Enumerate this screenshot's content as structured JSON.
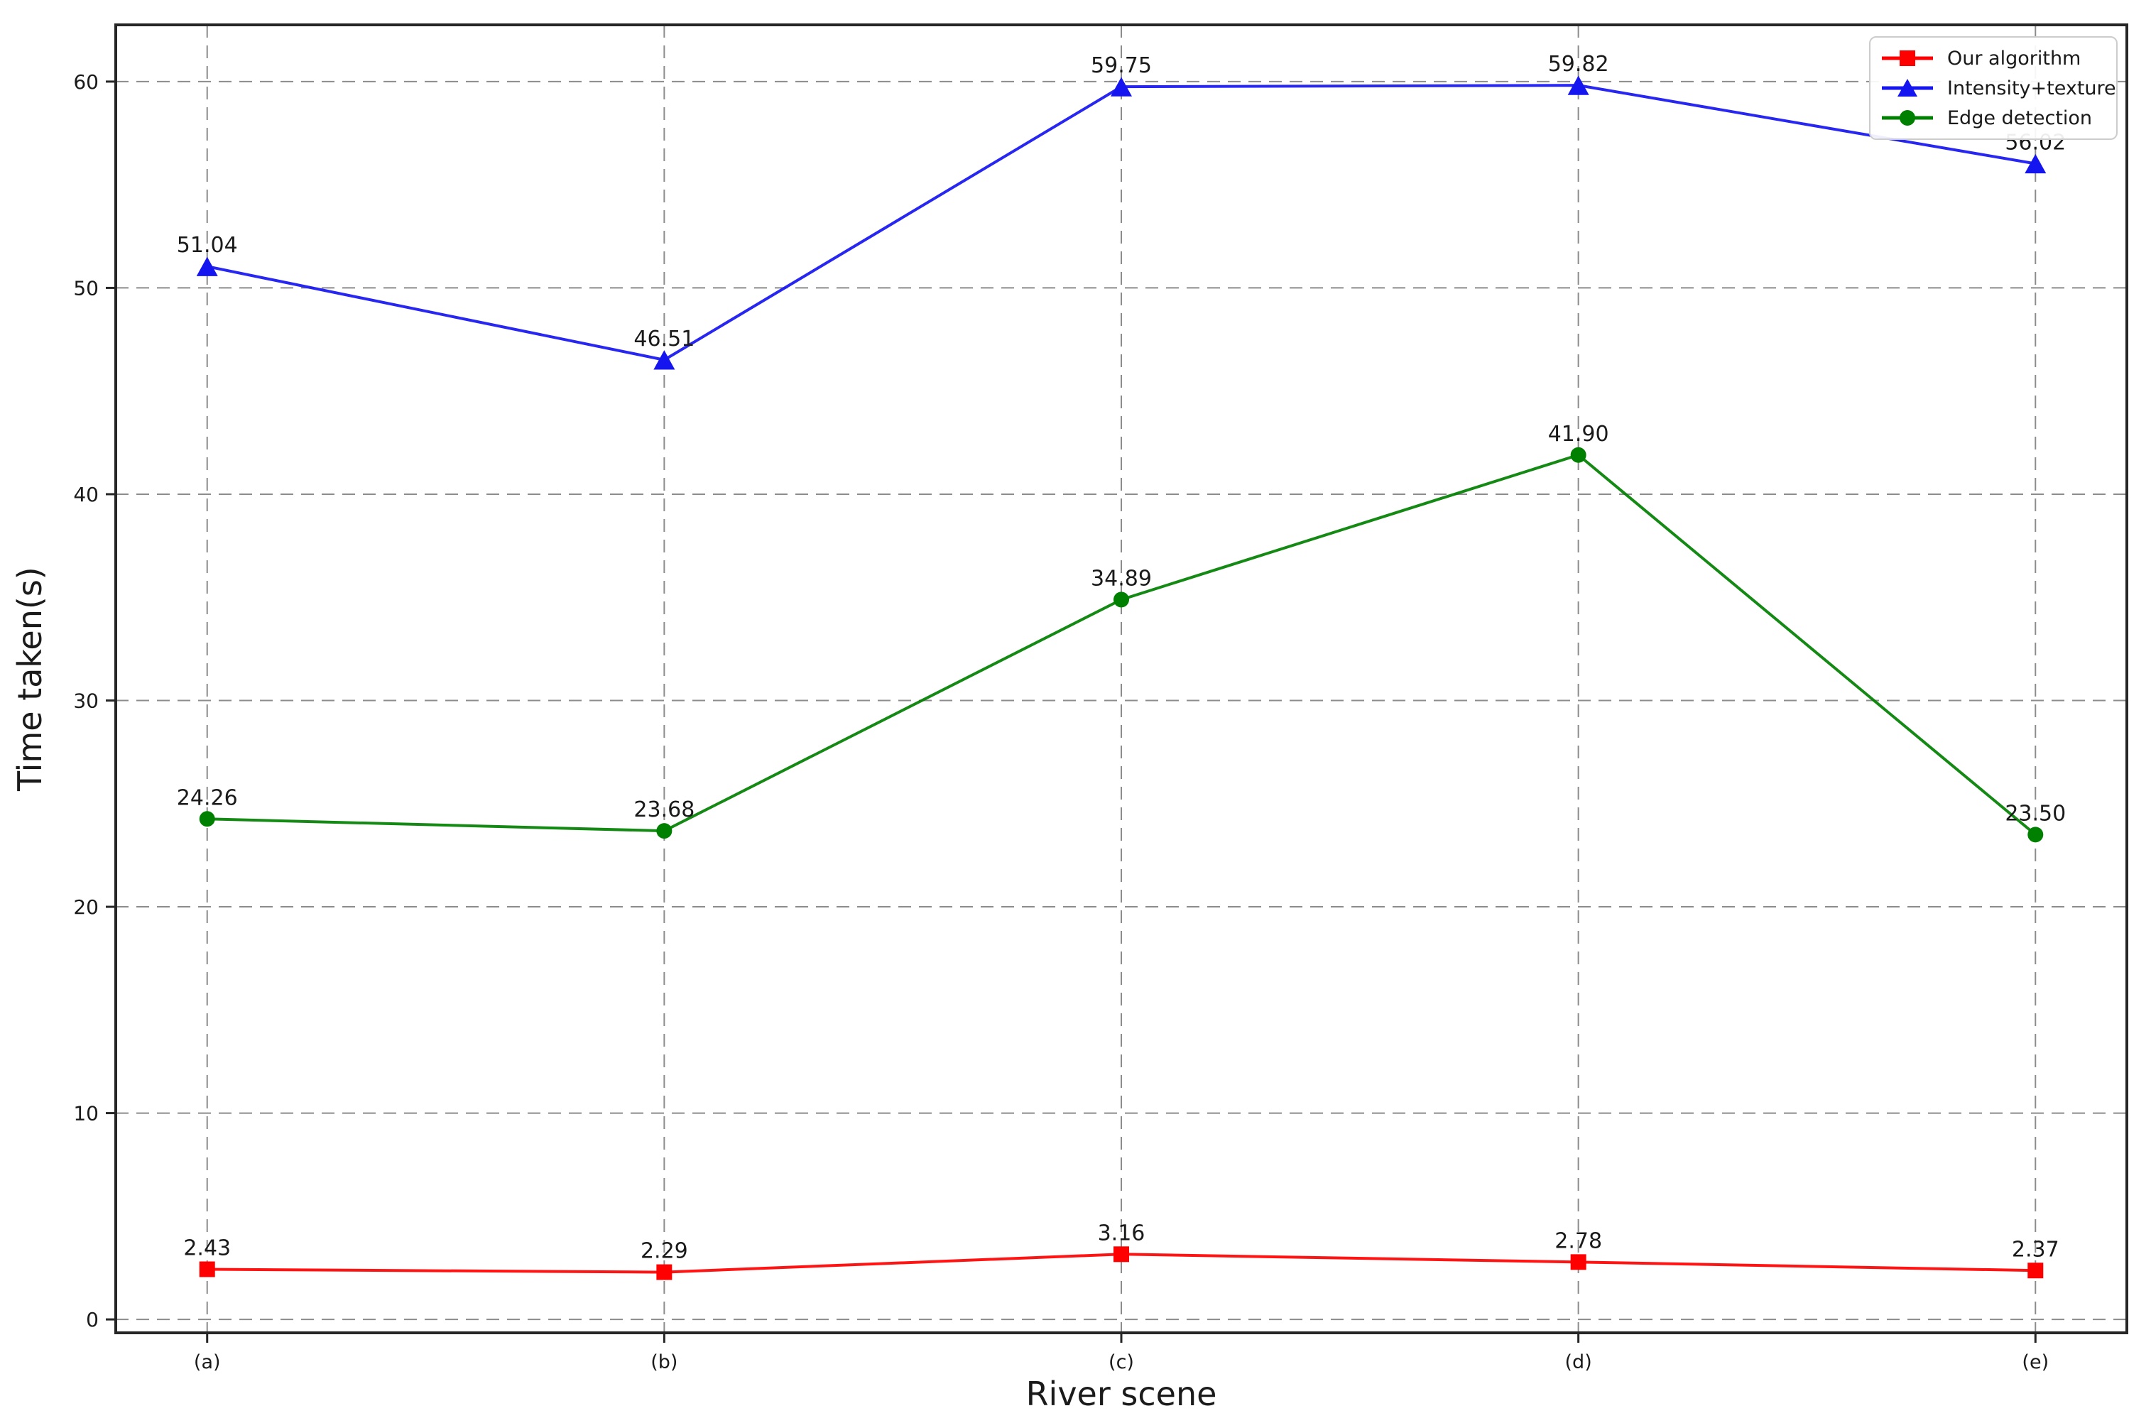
{
  "chart_data": {
    "type": "line",
    "title": "",
    "xlabel": "River scene",
    "ylabel": "Time taken(s)",
    "categories": [
      "(a)",
      "(b)",
      "(c)",
      "(d)",
      "(e)"
    ],
    "y_ticks": [
      0,
      10,
      20,
      30,
      40,
      50,
      60
    ],
    "ylim": [
      -0.65,
      62.75
    ],
    "grid": "dashed-both-axes",
    "legend_position": "upper-right",
    "value_labels_decimals": 2,
    "series": [
      {
        "name": "Our algorithm",
        "color": "#ff0000",
        "marker": "square",
        "values": [
          2.43,
          2.29,
          3.16,
          2.78,
          2.37
        ]
      },
      {
        "name": "Intensity+texture",
        "color": "#1515f0",
        "marker": "triangle-up",
        "values": [
          51.04,
          46.51,
          59.75,
          59.82,
          56.02
        ]
      },
      {
        "name": "Edge detection",
        "color": "#008000",
        "marker": "circle",
        "values": [
          24.26,
          23.68,
          34.89,
          41.9,
          23.5
        ]
      }
    ],
    "colors": {
      "spine": "#262626",
      "grid": "#8c8c8c",
      "text": "#1a1a1a"
    }
  }
}
